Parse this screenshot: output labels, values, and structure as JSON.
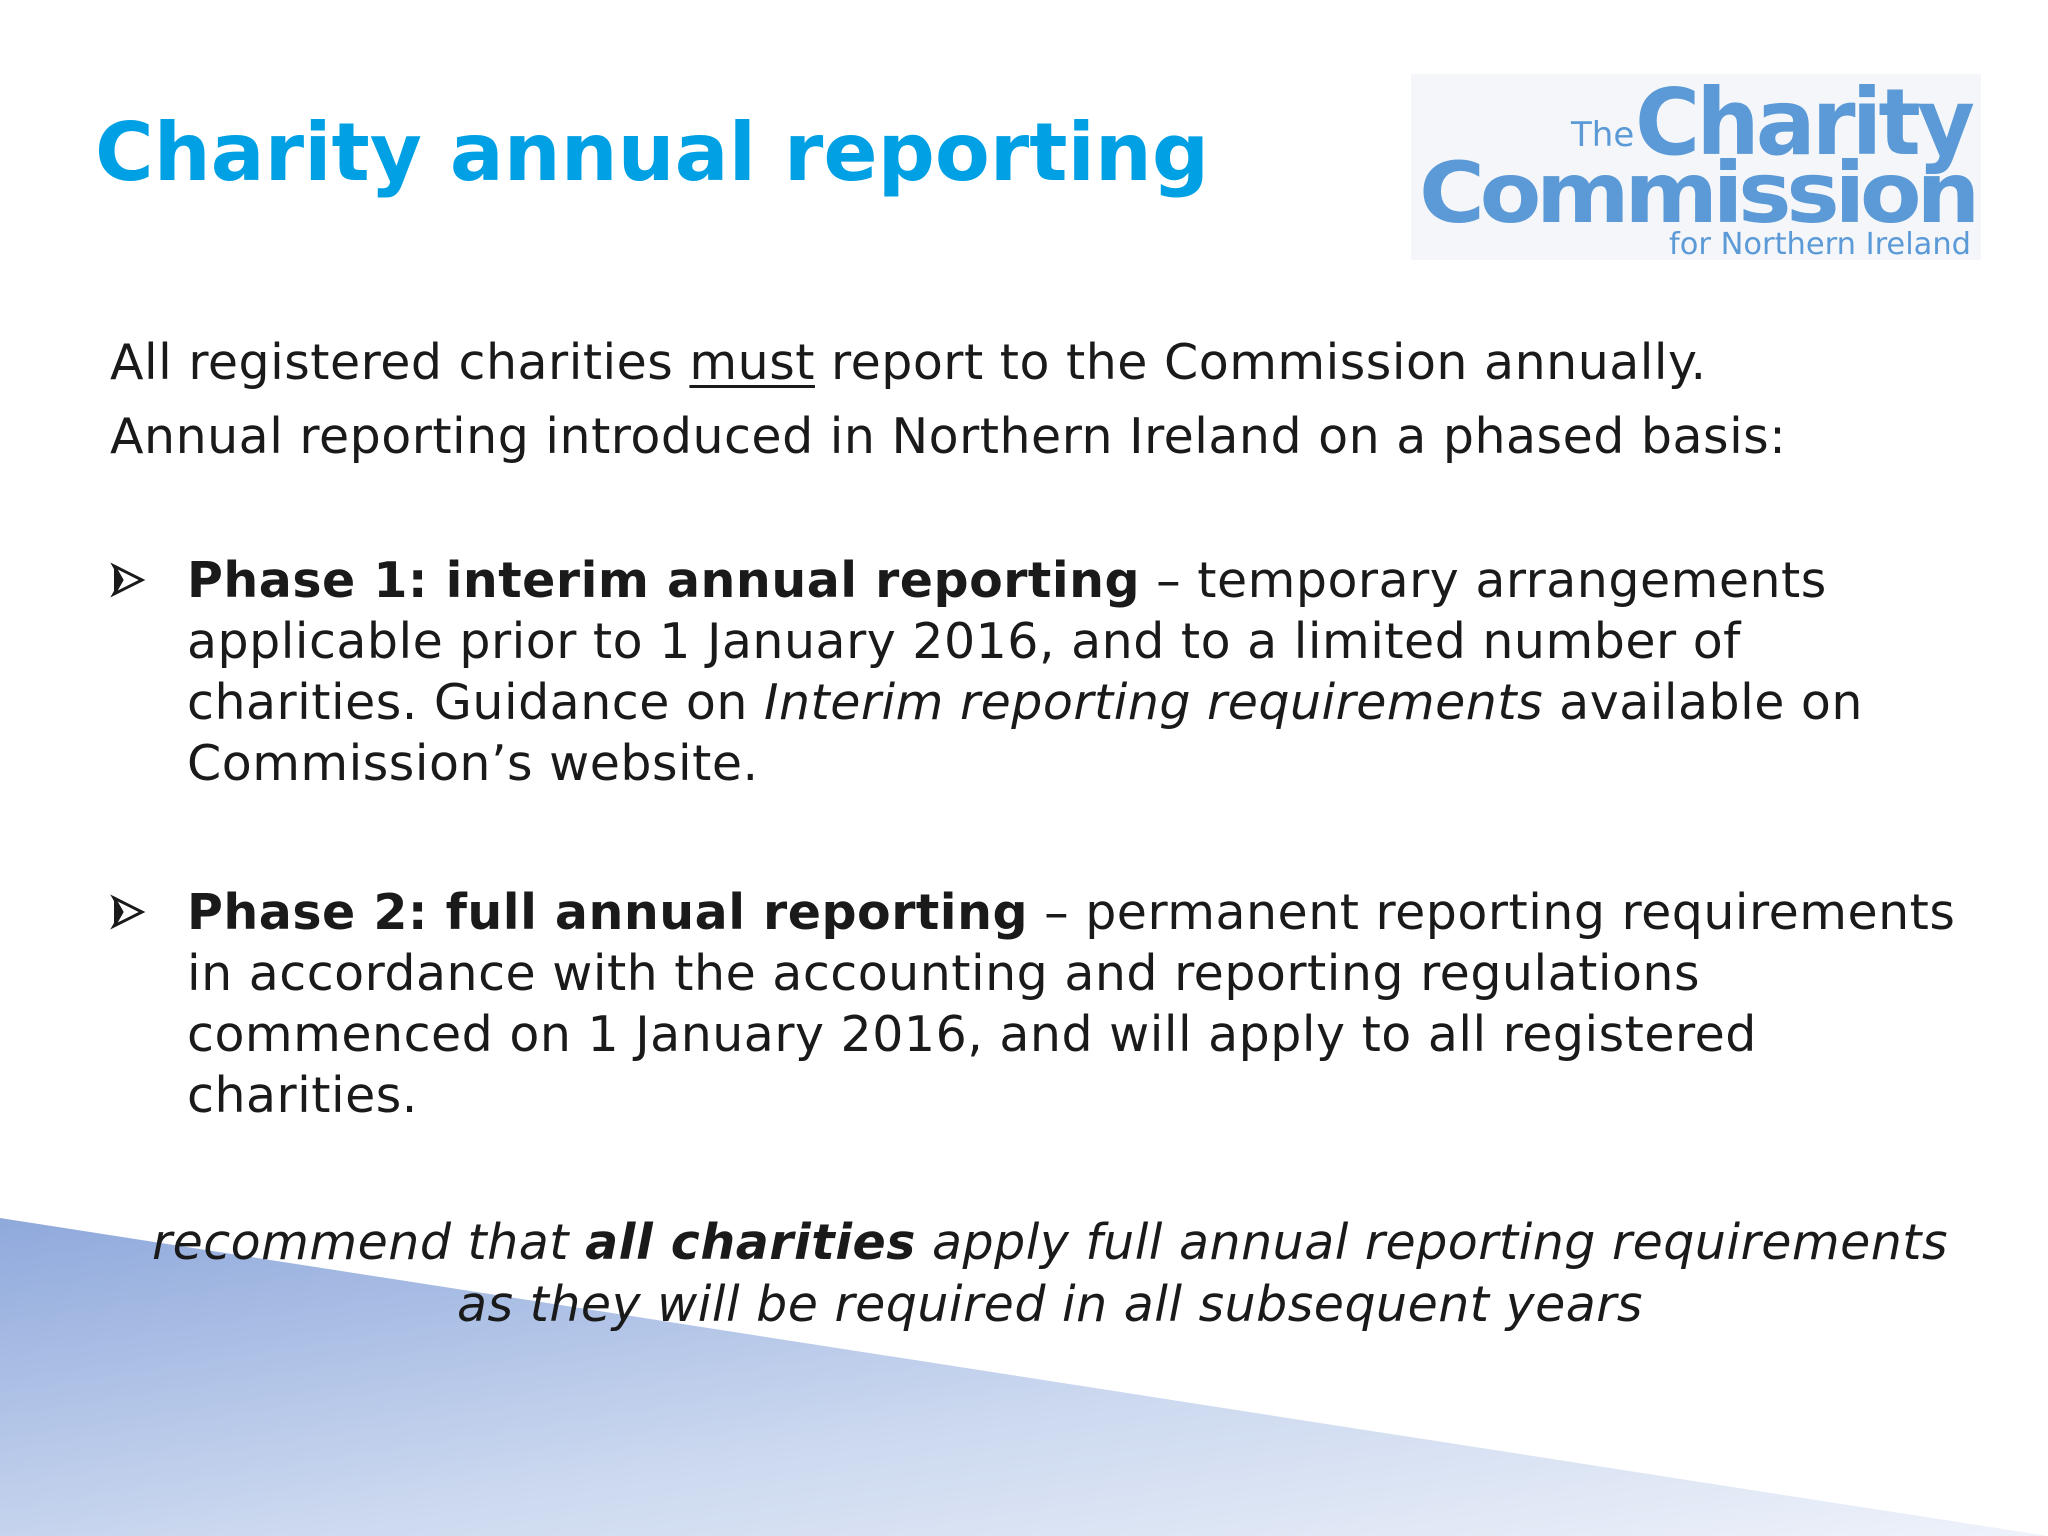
{
  "slide": {
    "title": "Charity annual reporting",
    "logo": {
      "line_the": "The",
      "line_charity": "Charity",
      "line_commission": "Commission",
      "line_sub": "for Northern Ireland"
    },
    "intro": {
      "line1_before": "All registered charities ",
      "line1_emphasis": "must",
      "line1_after": " report to the Commission annually.",
      "line2": "Annual reporting introduced in Northern Ireland on a phased basis:"
    },
    "bullets": [
      {
        "icon": "arrowhead-bullet-icon",
        "heading": "Phase 1: interim annual reporting",
        "text_before": " – temporary arrangements applicable prior to 1 January 2016, and to a limited number of charities.  Guidance on ",
        "text_italic": "Interim reporting requirements",
        "text_after": " available on Commission’s website."
      },
      {
        "icon": "arrowhead-bullet-icon",
        "heading": "Phase 2: full annual reporting",
        "text_before": " – permanent reporting requirements  in accordance with the accounting and reporting regulations commenced on 1 January 2016, and will apply to all registered charities.",
        "text_italic": "",
        "text_after": ""
      }
    ],
    "recommendation": {
      "before": "recommend that ",
      "bold": "all charities",
      "after": " apply full annual reporting requirements",
      "line2": "as they will be required in all subsequent years"
    }
  },
  "colors": {
    "title": "#00a0e4",
    "logo": "#5b9ad6",
    "text": "#1a1a1a",
    "wedge_dark": "#8fa9dc",
    "wedge_light": "#e6edf8"
  }
}
